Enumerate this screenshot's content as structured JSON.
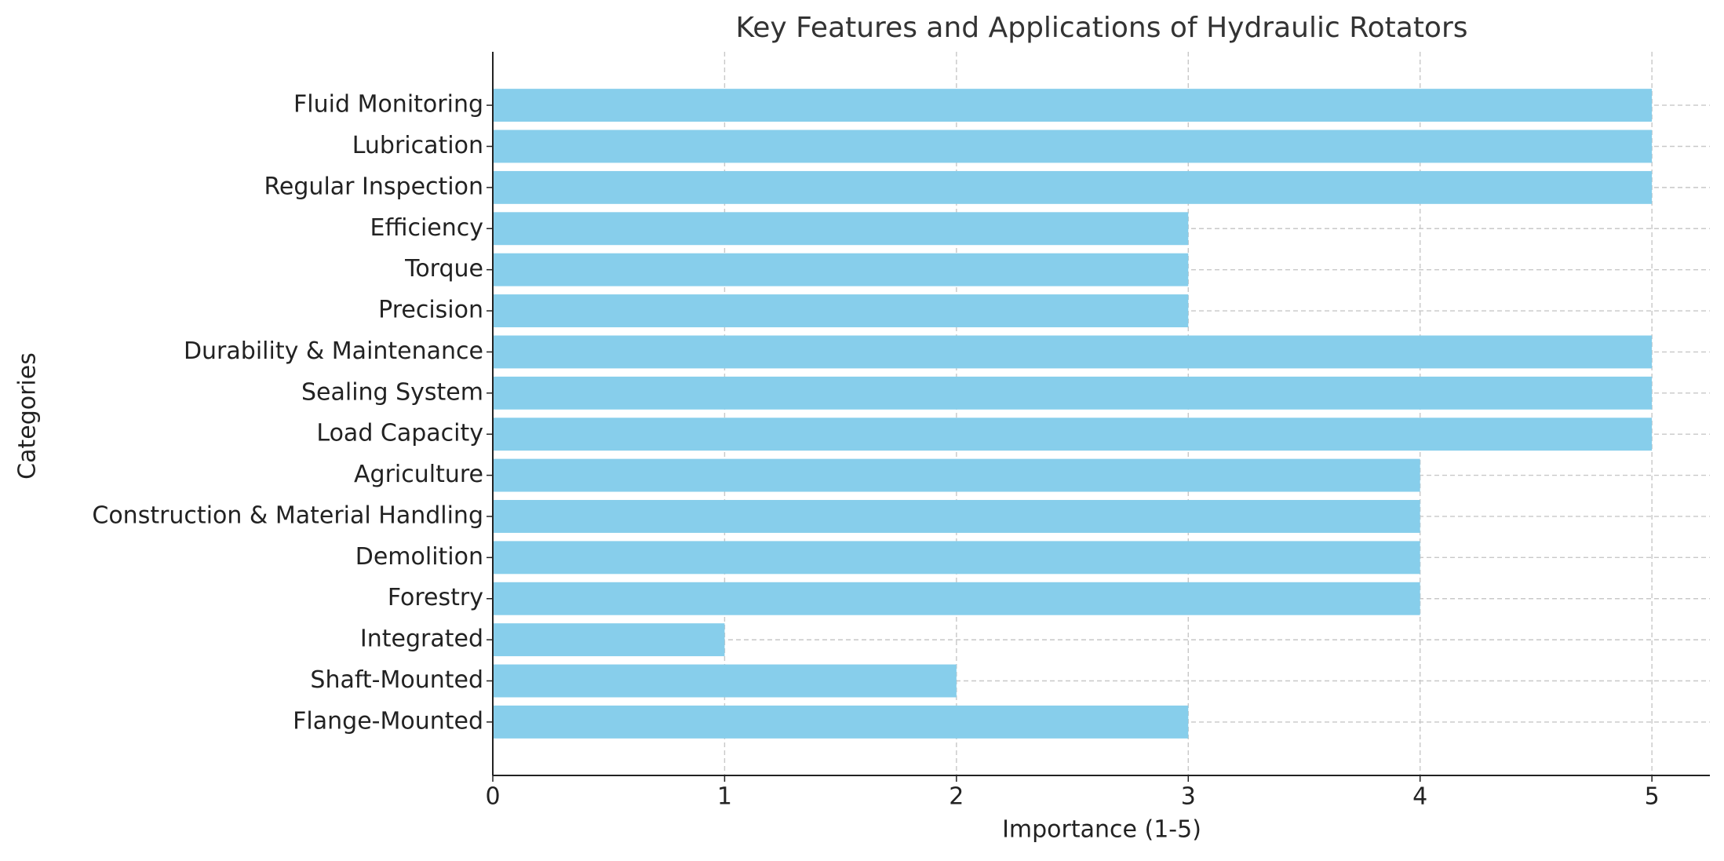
{
  "chart_data": {
    "type": "barh",
    "title": "Key Features and Applications of Hydraulic Rotators",
    "x_label": "Importance (1-5)",
    "y_label": "Categories",
    "categories": [
      "Flange-Mounted",
      "Shaft-Mounted",
      "Integrated",
      "Forestry",
      "Demolition",
      "Construction & Material Handling",
      "Agriculture",
      "Load Capacity",
      "Sealing System",
      "Durability & Maintenance",
      "Precision",
      "Torque",
      "Efficiency",
      "Regular Inspection",
      "Lubrication",
      "Fluid Monitoring"
    ],
    "values": [
      3,
      2,
      1,
      4,
      4,
      4,
      4,
      5,
      5,
      5,
      3,
      3,
      3,
      5,
      5,
      5
    ],
    "color": "#87ceeb",
    "xlim": [
      0,
      5.25
    ],
    "xticks": [
      0,
      1,
      2,
      3,
      4,
      5
    ],
    "grid": true
  }
}
